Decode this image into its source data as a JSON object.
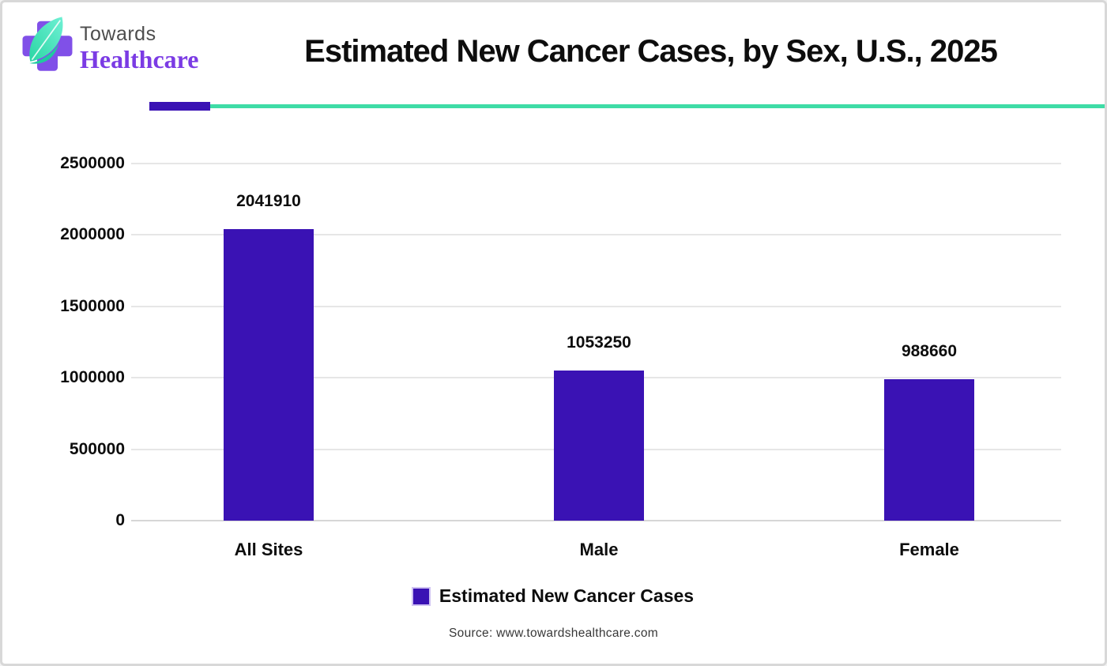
{
  "logo": {
    "top_text": "Towards",
    "bottom_text": "Healthcare"
  },
  "header": {
    "title": "Estimated New Cancer Cases, by Sex, U.S., 2025"
  },
  "chart_data": {
    "type": "bar",
    "title": "Estimated New Cancer Cases, by Sex, U.S., 2025",
    "categories": [
      "All Sites",
      "Male",
      "Female"
    ],
    "series": [
      {
        "name": "Estimated New Cancer Cases",
        "values": [
          2041910,
          1053250,
          988660
        ]
      }
    ],
    "xlabel": "",
    "ylabel": "",
    "ylim": [
      0,
      2500000
    ],
    "yticks": [
      0,
      500000,
      1000000,
      1500000,
      2000000,
      2500000
    ],
    "grid": true,
    "legend_position": "bottom",
    "data_labels_shown": true
  },
  "legend": {
    "label": "Estimated New Cancer Cases"
  },
  "footer": {
    "source": "Source: www.towardshealthcare.com"
  },
  "colors": {
    "bar": "#3a12b4",
    "divider_purple": "#3a12b4",
    "divider_teal": "#3edca6",
    "gridline": "#e6e6e6",
    "baseline": "#d6d6d6",
    "logo_cross_purple": "#8050e8",
    "logo_leaf_teal_light": "#6ff0d4",
    "logo_leaf_teal_dark": "#2bd6a4",
    "logo_towards_gray": "#4d4d4d",
    "logo_healthcare_purple": "#7b3be4"
  }
}
